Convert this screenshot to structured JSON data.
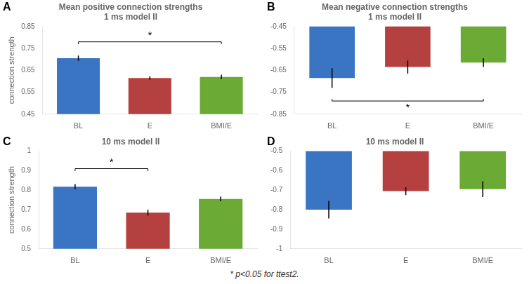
{
  "chart_data": [
    {
      "type": "bar",
      "panel_label": "A",
      "title": "Mean positive connection strengths\n1 ms model II",
      "categories": [
        "BL",
        "E",
        "BMI/E"
      ],
      "values": [
        0.705,
        0.615,
        0.62
      ],
      "errors": [
        0.012,
        0.008,
        0.01
      ],
      "colors": [
        "#3a75c4",
        "#b54040",
        "#6aaa35"
      ],
      "ylim": [
        0.45,
        0.85
      ],
      "yticks": [
        0.45,
        0.55,
        0.65,
        0.75,
        0.85
      ],
      "ylabel": "connection strength",
      "grid": false,
      "annotations": [
        {
          "text": "*",
          "from": "BL",
          "to": "BMI/E",
          "y": 0.78,
          "side": "top"
        }
      ]
    },
    {
      "type": "bar",
      "panel_label": "B",
      "title": "Mean negative connection strengths\n1 ms model II",
      "categories": [
        "BL",
        "E",
        "BMI/E"
      ],
      "values": [
        -0.685,
        -0.635,
        -0.615
      ],
      "errors": [
        0.045,
        0.03,
        0.02
      ],
      "colors": [
        "#3a75c4",
        "#b54040",
        "#6aaa35"
      ],
      "ylim": [
        -0.85,
        -0.45
      ],
      "yticks": [
        -0.85,
        -0.75,
        -0.65,
        -0.55,
        -0.45
      ],
      "grid": false,
      "annotations": [
        {
          "text": "*",
          "from": "BL",
          "to": "BMI/E",
          "y": -0.79,
          "side": "bottom"
        }
      ]
    },
    {
      "type": "bar",
      "panel_label": "C",
      "title": "10 ms model II",
      "categories": [
        "BL",
        "E",
        "BMI/E"
      ],
      "values": [
        0.818,
        0.685,
        0.755
      ],
      "errors": [
        0.013,
        0.015,
        0.012
      ],
      "colors": [
        "#3a75c4",
        "#b54040",
        "#6aaa35"
      ],
      "ylim": [
        0.5,
        1.0
      ],
      "yticks": [
        0.5,
        0.6,
        0.7,
        0.8,
        0.9,
        1.0
      ],
      "ylabel": "connection strength",
      "grid": false,
      "annotations": [
        {
          "text": "*",
          "from": "BL",
          "to": "E",
          "y": 0.91,
          "side": "top"
        }
      ]
    },
    {
      "type": "bar",
      "panel_label": "D",
      "title": "10 ms model II",
      "categories": [
        "BL",
        "E",
        "BMI/E"
      ],
      "values": [
        -0.8,
        -0.705,
        -0.695
      ],
      "errors": [
        0.045,
        0.02,
        0.04
      ],
      "colors": [
        "#3a75c4",
        "#b54040",
        "#6aaa35"
      ],
      "ylim": [
        -1.0,
        -0.5
      ],
      "yticks": [
        -1.0,
        -0.9,
        -0.8,
        -0.7,
        -0.6,
        -0.5
      ],
      "grid": false
    }
  ],
  "footnote": "* p<0.05 for ttest2."
}
